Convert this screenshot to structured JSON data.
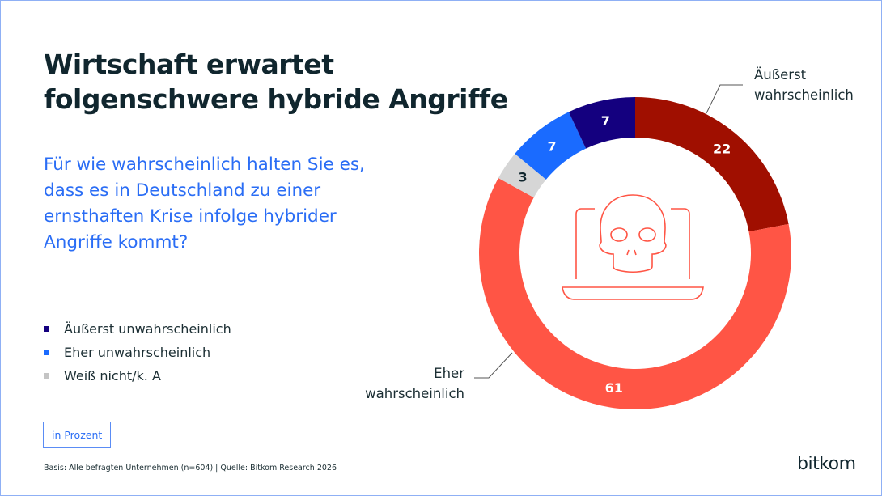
{
  "title_lines": [
    "Wirtschaft erwartet",
    "folgenschwere hybride Angriffe"
  ],
  "question": "Für wie wahrscheinlich halten Sie es, dass es in Deutschland zu einer ernsthaften Krise infolge hybrider Angriffe kommt?",
  "unit_badge": "in Prozent",
  "footer": "Basis: Alle befragten Unternehmen (n=604) | Quelle: Bitkom Research 2026",
  "logo": "bitkom",
  "legend": [
    {
      "label": "Äußerst unwahrscheinlich",
      "color": "#14007f"
    },
    {
      "label": "Eher unwahrscheinlich",
      "color": "#1a6bff"
    },
    {
      "label": "Weiß nicht/k. A",
      "color": "#c4c4c4"
    }
  ],
  "center_icon": "laptop-skull-icon",
  "chart_data": {
    "type": "pie",
    "donut": true,
    "unit": "in Prozent",
    "categories": [
      "Äußerst wahrscheinlich",
      "Eher wahrscheinlich",
      "Weiß nicht/k. A",
      "Eher unwahrscheinlich",
      "Äußerst unwahrscheinlich"
    ],
    "values": [
      22,
      61,
      3,
      7,
      7
    ],
    "colors": [
      "#a00f00",
      "#ff5545",
      "#d6d6d6",
      "#1a6bff",
      "#14007f"
    ],
    "label_colors": [
      "#ffffff",
      "#ffffff",
      "#10262e",
      "#ffffff",
      "#ffffff"
    ],
    "callouts": [
      {
        "lines": [
          "Äußerst",
          "wahrscheinlich"
        ]
      },
      {
        "lines": [
          "Eher",
          "wahrscheinlich"
        ]
      }
    ]
  }
}
